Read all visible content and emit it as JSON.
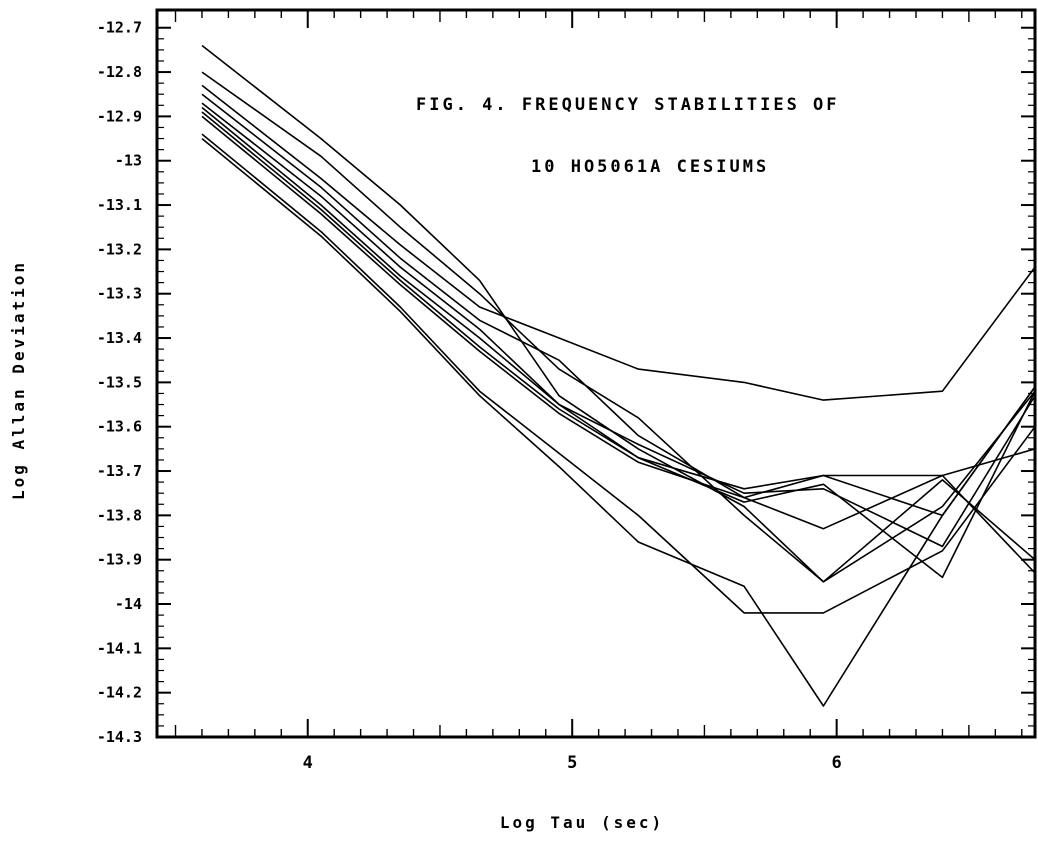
{
  "chart_data": {
    "type": "line",
    "title": "FIG. 4.  FREQUENCY STABILITIES OF",
    "subtitle": "10 HO5061A CESIUMS",
    "xlabel": "Log Tau (sec)",
    "ylabel": "Log Allan Deviation",
    "xlim": [
      3.43,
      6.75
    ],
    "ylim": [
      -14.3,
      -12.66
    ],
    "x_ticks": [
      4,
      5,
      6
    ],
    "x_tick_labels": [
      "4",
      "5",
      "6"
    ],
    "y_ticks": [
      -12.7,
      -12.8,
      -12.9,
      -13,
      -13.1,
      -13.2,
      -13.3,
      -13.4,
      -13.5,
      -13.6,
      -13.7,
      -13.8,
      -13.9,
      -14,
      -14.1,
      -14.2,
      -14.3
    ],
    "y_tick_labels": [
      "-12.7",
      "-12.8",
      "-12.9",
      "-13",
      "-13.1",
      "-13.2",
      "-13.3",
      "-13.4",
      "-13.5",
      "-13.6",
      "-13.7",
      "-13.8",
      "-13.9",
      "-14",
      "-14.1",
      "-14.2",
      "-14.3"
    ],
    "grid": false,
    "legend": "none",
    "x": [
      3.6,
      4.05,
      4.35,
      4.65,
      4.95,
      5.25,
      5.65,
      5.95,
      6.4,
      6.75
    ],
    "series": [
      {
        "values": [
          -12.74,
          -12.95,
          -13.1,
          -13.27,
          -13.53,
          -13.65,
          -13.78,
          -13.95,
          -13.72,
          -13.9
        ]
      },
      {
        "values": [
          -12.8,
          -12.99,
          -13.15,
          -13.3,
          -13.47,
          -13.58,
          -13.8,
          -13.95,
          -13.78,
          -13.52
        ]
      },
      {
        "values": [
          -12.83,
          -13.04,
          -13.19,
          -13.33,
          -13.4,
          -13.47,
          -13.5,
          -13.54,
          -13.52,
          -13.24
        ]
      },
      {
        "values": [
          -12.85,
          -13.06,
          -13.22,
          -13.36,
          -13.45,
          -13.62,
          -13.76,
          -13.83,
          -13.71,
          -13.65
        ]
      },
      {
        "values": [
          -12.87,
          -13.08,
          -13.24,
          -13.38,
          -13.55,
          -13.64,
          -13.75,
          -13.74,
          -13.87,
          -13.53
        ]
      },
      {
        "values": [
          -12.88,
          -13.1,
          -13.26,
          -13.4,
          -13.55,
          -13.67,
          -13.74,
          -13.71,
          -13.71,
          -13.93
        ]
      },
      {
        "values": [
          -12.89,
          -13.11,
          -13.27,
          -13.42,
          -13.56,
          -13.67,
          -13.77,
          -13.73,
          -13.94,
          -13.52
        ]
      },
      {
        "values": [
          -12.9,
          -13.12,
          -13.28,
          -13.43,
          -13.57,
          -13.68,
          -13.76,
          -13.71,
          -13.8,
          -13.51
        ]
      },
      {
        "values": [
          -12.94,
          -13.16,
          -13.33,
          -13.52,
          -13.66,
          -13.8,
          -14.02,
          -14.02,
          -13.88,
          -13.6
        ]
      },
      {
        "values": [
          -12.95,
          -13.17,
          -13.34,
          -13.53,
          -13.69,
          -13.86,
          -13.96,
          -14.23,
          -13.8,
          -13.51
        ]
      }
    ]
  }
}
